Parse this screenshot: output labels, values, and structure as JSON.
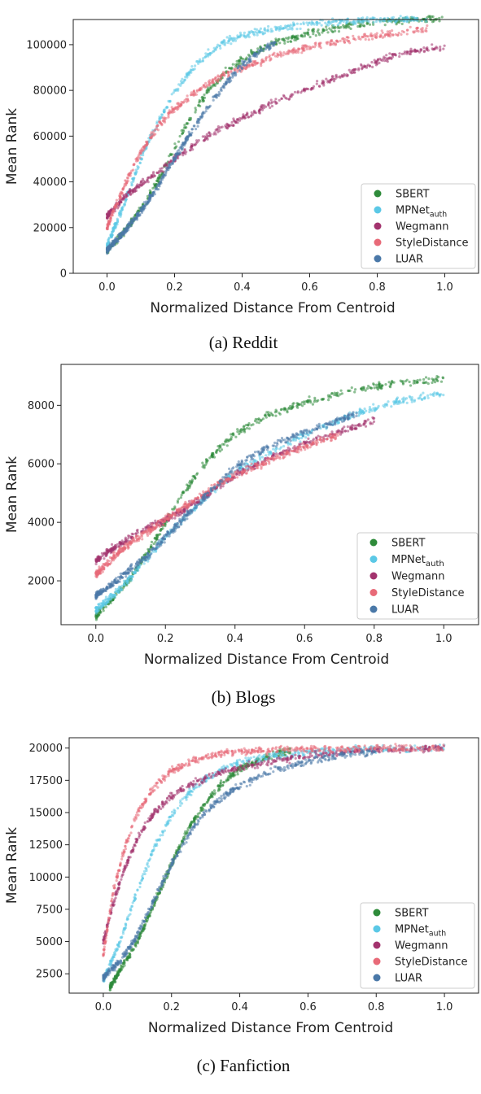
{
  "colors": {
    "SBERT": "#2e8b3a",
    "MPNet": "#5bc8e6",
    "Wegmann": "#a3336e",
    "StyleDistance": "#e86a78",
    "LUAR": "#4a78a8"
  },
  "legend_labels": {
    "SBERT": "SBERT",
    "MPNet_base": "MPNet",
    "MPNet_sub": "auth",
    "Wegmann": "Wegmann",
    "StyleDistance": "StyleDistance",
    "LUAR": "LUAR"
  },
  "chart_data": [
    {
      "type": "scatter",
      "caption": "(a) Reddit",
      "xlabel": "Normalized Distance From Centroid",
      "ylabel": "Mean Rank",
      "xlim": [
        -0.1,
        1.1
      ],
      "ylim": [
        0,
        111000
      ],
      "xticks": [
        0.0,
        0.2,
        0.4,
        0.6,
        0.8,
        1.0
      ],
      "xtick_labels": [
        "0.0",
        "0.2",
        "0.4",
        "0.6",
        "0.8",
        "1.0"
      ],
      "yticks": [
        0,
        20000,
        40000,
        60000,
        80000,
        100000
      ],
      "ytick_labels": [
        "0",
        "20000",
        "40000",
        "60000",
        "80000",
        "100000"
      ],
      "legend_position": "lower-right",
      "series": [
        {
          "name": "SBERT",
          "x": [
            0.0,
            0.05,
            0.1,
            0.15,
            0.2,
            0.25,
            0.3,
            0.35,
            0.4,
            0.5,
            0.6,
            0.7,
            0.8,
            0.9,
            1.0
          ],
          "y": [
            10000,
            18000,
            28000,
            40000,
            55000,
            69000,
            80000,
            88000,
            94000,
            101000,
            105000,
            108000,
            110000,
            111000,
            111000
          ]
        },
        {
          "name": "MPNet_auth",
          "x": [
            0.0,
            0.05,
            0.1,
            0.15,
            0.2,
            0.25,
            0.3,
            0.35,
            0.4,
            0.5,
            0.6,
            0.7,
            0.8,
            0.9,
            0.95
          ],
          "y": [
            12000,
            30000,
            50000,
            66000,
            79000,
            89000,
            96000,
            101000,
            104000,
            107000,
            109000,
            110000,
            111000,
            111000,
            111000
          ]
        },
        {
          "name": "Wegmann",
          "x": [
            0.0,
            0.05,
            0.1,
            0.15,
            0.2,
            0.25,
            0.3,
            0.35,
            0.4,
            0.5,
            0.6,
            0.7,
            0.8,
            0.9,
            1.0
          ],
          "y": [
            25000,
            33000,
            39000,
            44000,
            50000,
            55000,
            60000,
            64000,
            68000,
            75000,
            81000,
            87000,
            93000,
            97000,
            99000
          ]
        },
        {
          "name": "StyleDistance",
          "x": [
            0.0,
            0.05,
            0.1,
            0.15,
            0.2,
            0.25,
            0.3,
            0.35,
            0.4,
            0.5,
            0.6,
            0.7,
            0.8,
            0.9,
            0.95
          ],
          "y": [
            20000,
            38000,
            53000,
            64000,
            72000,
            78000,
            83000,
            87000,
            90000,
            95000,
            99000,
            102000,
            104000,
            106000,
            107000
          ]
        },
        {
          "name": "LUAR",
          "x": [
            0.0,
            0.05,
            0.1,
            0.15,
            0.2,
            0.25,
            0.3,
            0.35,
            0.4,
            0.45,
            0.5
          ],
          "y": [
            10000,
            18000,
            27000,
            38000,
            50000,
            62000,
            73000,
            83000,
            91000,
            97000,
            101000
          ]
        }
      ]
    },
    {
      "type": "scatter",
      "caption": "(b) Blogs",
      "xlabel": "Normalized Distance From Centroid",
      "ylabel": "Mean Rank",
      "xlim": [
        -0.1,
        1.1
      ],
      "ylim": [
        500,
        9400
      ],
      "xticks": [
        0.0,
        0.2,
        0.4,
        0.6,
        0.8,
        1.0
      ],
      "xtick_labels": [
        "0.0",
        "0.2",
        "0.4",
        "0.6",
        "0.8",
        "1.0"
      ],
      "yticks": [
        2000,
        4000,
        6000,
        8000
      ],
      "ytick_labels": [
        "2000",
        "4000",
        "6000",
        "8000"
      ],
      "legend_position": "lower-right",
      "series": [
        {
          "name": "SBERT",
          "x": [
            0.0,
            0.05,
            0.1,
            0.15,
            0.2,
            0.25,
            0.3,
            0.35,
            0.4,
            0.5,
            0.6,
            0.7,
            0.8,
            0.9,
            1.0
          ],
          "y": [
            800,
            1400,
            2100,
            3000,
            4000,
            5000,
            5800,
            6500,
            7000,
            7700,
            8100,
            8400,
            8650,
            8800,
            8900
          ]
        },
        {
          "name": "MPNet_auth",
          "x": [
            0.0,
            0.05,
            0.1,
            0.15,
            0.2,
            0.25,
            0.3,
            0.35,
            0.4,
            0.5,
            0.6,
            0.7,
            0.8,
            0.9,
            1.0
          ],
          "y": [
            1000,
            1500,
            2100,
            2800,
            3500,
            4100,
            4700,
            5200,
            5700,
            6400,
            7000,
            7500,
            7900,
            8200,
            8400
          ]
        },
        {
          "name": "Wegmann",
          "x": [
            0.0,
            0.05,
            0.1,
            0.15,
            0.2,
            0.25,
            0.3,
            0.35,
            0.4,
            0.5,
            0.6,
            0.7,
            0.8
          ],
          "y": [
            2700,
            3100,
            3500,
            3800,
            4100,
            4400,
            4800,
            5200,
            5600,
            6200,
            6700,
            7100,
            7500
          ]
        },
        {
          "name": "StyleDistance",
          "x": [
            0.0,
            0.05,
            0.1,
            0.15,
            0.2,
            0.25,
            0.3,
            0.35,
            0.4,
            0.5,
            0.6,
            0.7
          ],
          "y": [
            2200,
            2800,
            3300,
            3700,
            4100,
            4500,
            4900,
            5300,
            5600,
            6100,
            6600,
            7000
          ]
        },
        {
          "name": "LUAR",
          "x": [
            0.0,
            0.05,
            0.1,
            0.15,
            0.2,
            0.25,
            0.3,
            0.35,
            0.4,
            0.5,
            0.6,
            0.7,
            0.75
          ],
          "y": [
            1500,
            1900,
            2400,
            2900,
            3500,
            4100,
            4700,
            5300,
            5900,
            6600,
            7100,
            7500,
            7700
          ]
        }
      ]
    },
    {
      "type": "scatter",
      "caption": "(c) Fanfiction",
      "xlabel": "Normalized Distance From Centroid",
      "ylabel": "Mean Rank",
      "xlim": [
        -0.1,
        1.1
      ],
      "ylim": [
        1000,
        20800
      ],
      "xticks": [
        0.0,
        0.2,
        0.4,
        0.6,
        0.8,
        1.0
      ],
      "xtick_labels": [
        "0.0",
        "0.2",
        "0.4",
        "0.6",
        "0.8",
        "1.0"
      ],
      "yticks": [
        2500,
        5000,
        7500,
        10000,
        12500,
        15000,
        17500,
        20000
      ],
      "ytick_labels": [
        "2500",
        "5000",
        "7500",
        "10000",
        "12500",
        "15000",
        "17500",
        "20000"
      ],
      "legend_position": "lower-right",
      "series": [
        {
          "name": "SBERT",
          "x": [
            0.02,
            0.05,
            0.1,
            0.15,
            0.2,
            0.25,
            0.3,
            0.35,
            0.4,
            0.45,
            0.5,
            0.55
          ],
          "y": [
            1500,
            2800,
            5000,
            8000,
            11000,
            13800,
            15800,
            17300,
            18400,
            19000,
            19500,
            19800
          ]
        },
        {
          "name": "MPNet_auth",
          "x": [
            0.0,
            0.05,
            0.1,
            0.15,
            0.2,
            0.25,
            0.3,
            0.35,
            0.4,
            0.5,
            0.6,
            0.7,
            0.8,
            0.9,
            1.0
          ],
          "y": [
            2000,
            5000,
            9000,
            12300,
            14800,
            16500,
            17600,
            18400,
            18900,
            19400,
            19700,
            19850,
            19900,
            19950,
            20000
          ]
        },
        {
          "name": "Wegmann",
          "x": [
            0.0,
            0.03,
            0.06,
            0.1,
            0.15,
            0.2,
            0.25,
            0.3,
            0.35,
            0.4,
            0.5,
            0.6,
            0.7,
            0.8,
            0.9,
            1.0
          ],
          "y": [
            5000,
            8000,
            10500,
            13000,
            15000,
            16300,
            17100,
            17700,
            18100,
            18500,
            19000,
            19400,
            19700,
            19850,
            19950,
            20000
          ]
        },
        {
          "name": "StyleDistance",
          "x": [
            0.0,
            0.03,
            0.06,
            0.1,
            0.15,
            0.2,
            0.25,
            0.3,
            0.35,
            0.4,
            0.5,
            0.6,
            0.7,
            0.8,
            0.9,
            1.0
          ],
          "y": [
            4000,
            9000,
            12000,
            15000,
            17000,
            18200,
            18900,
            19300,
            19600,
            19750,
            19850,
            19900,
            19950,
            19980,
            19990,
            20000
          ]
        },
        {
          "name": "LUAR",
          "x": [
            0.0,
            0.05,
            0.1,
            0.15,
            0.2,
            0.25,
            0.3,
            0.35,
            0.4,
            0.5,
            0.6,
            0.7,
            0.8
          ],
          "y": [
            2200,
            3500,
            5500,
            8300,
            11000,
            13300,
            15000,
            16200,
            17100,
            18300,
            19000,
            19500,
            19700
          ]
        }
      ]
    }
  ]
}
